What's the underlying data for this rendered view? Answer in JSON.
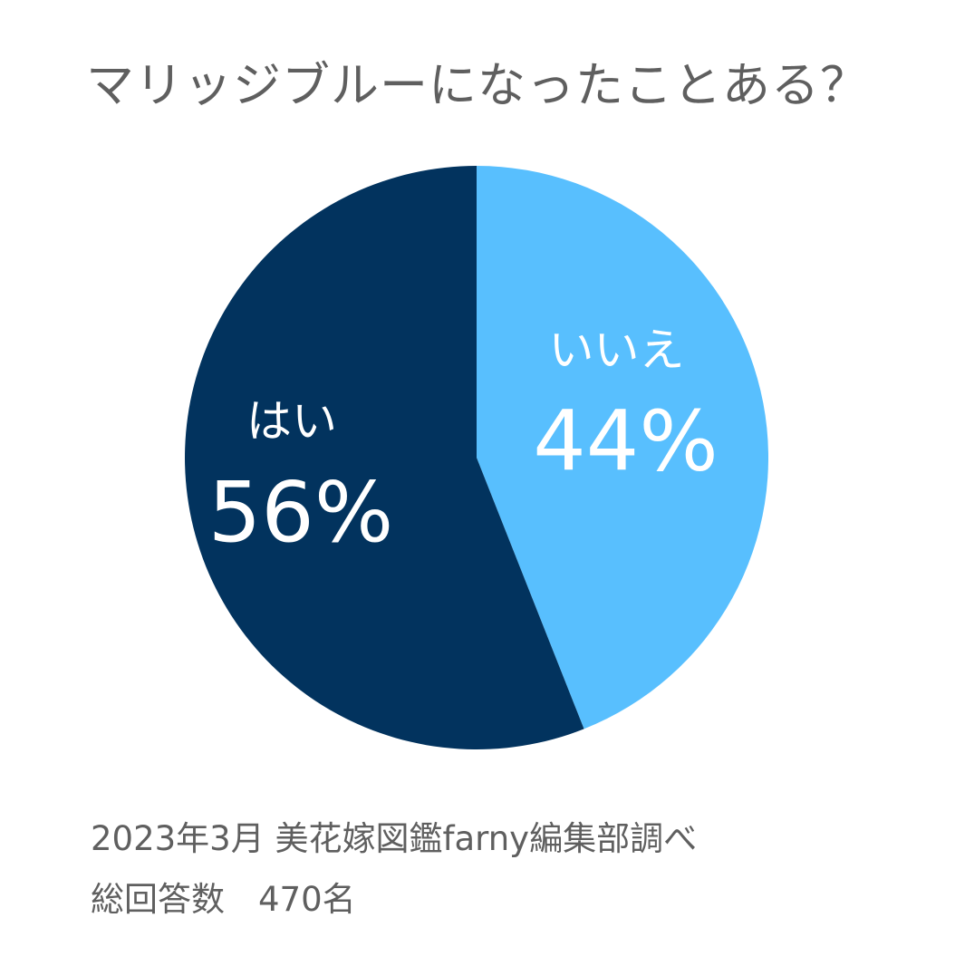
{
  "chart_data": {
    "type": "pie",
    "title": "マリッジブルーになったことある？",
    "slices": [
      {
        "label": "いいえ",
        "value": 44,
        "value_label": "44%",
        "color": "#58bffe"
      },
      {
        "label": "はい",
        "value": 56,
        "value_label": "56%",
        "color": "#02335e"
      }
    ],
    "start": "12 o'clock",
    "direction": "clockwise",
    "legend": "none"
  },
  "footnote": {
    "source": "2023年3月 美花嫁図鑑farny編集部調べ",
    "count": "総回答数　470名"
  },
  "colors": {
    "background": "#ffffff",
    "text": "#5f5f5f",
    "slice_label": "#ffffff"
  }
}
